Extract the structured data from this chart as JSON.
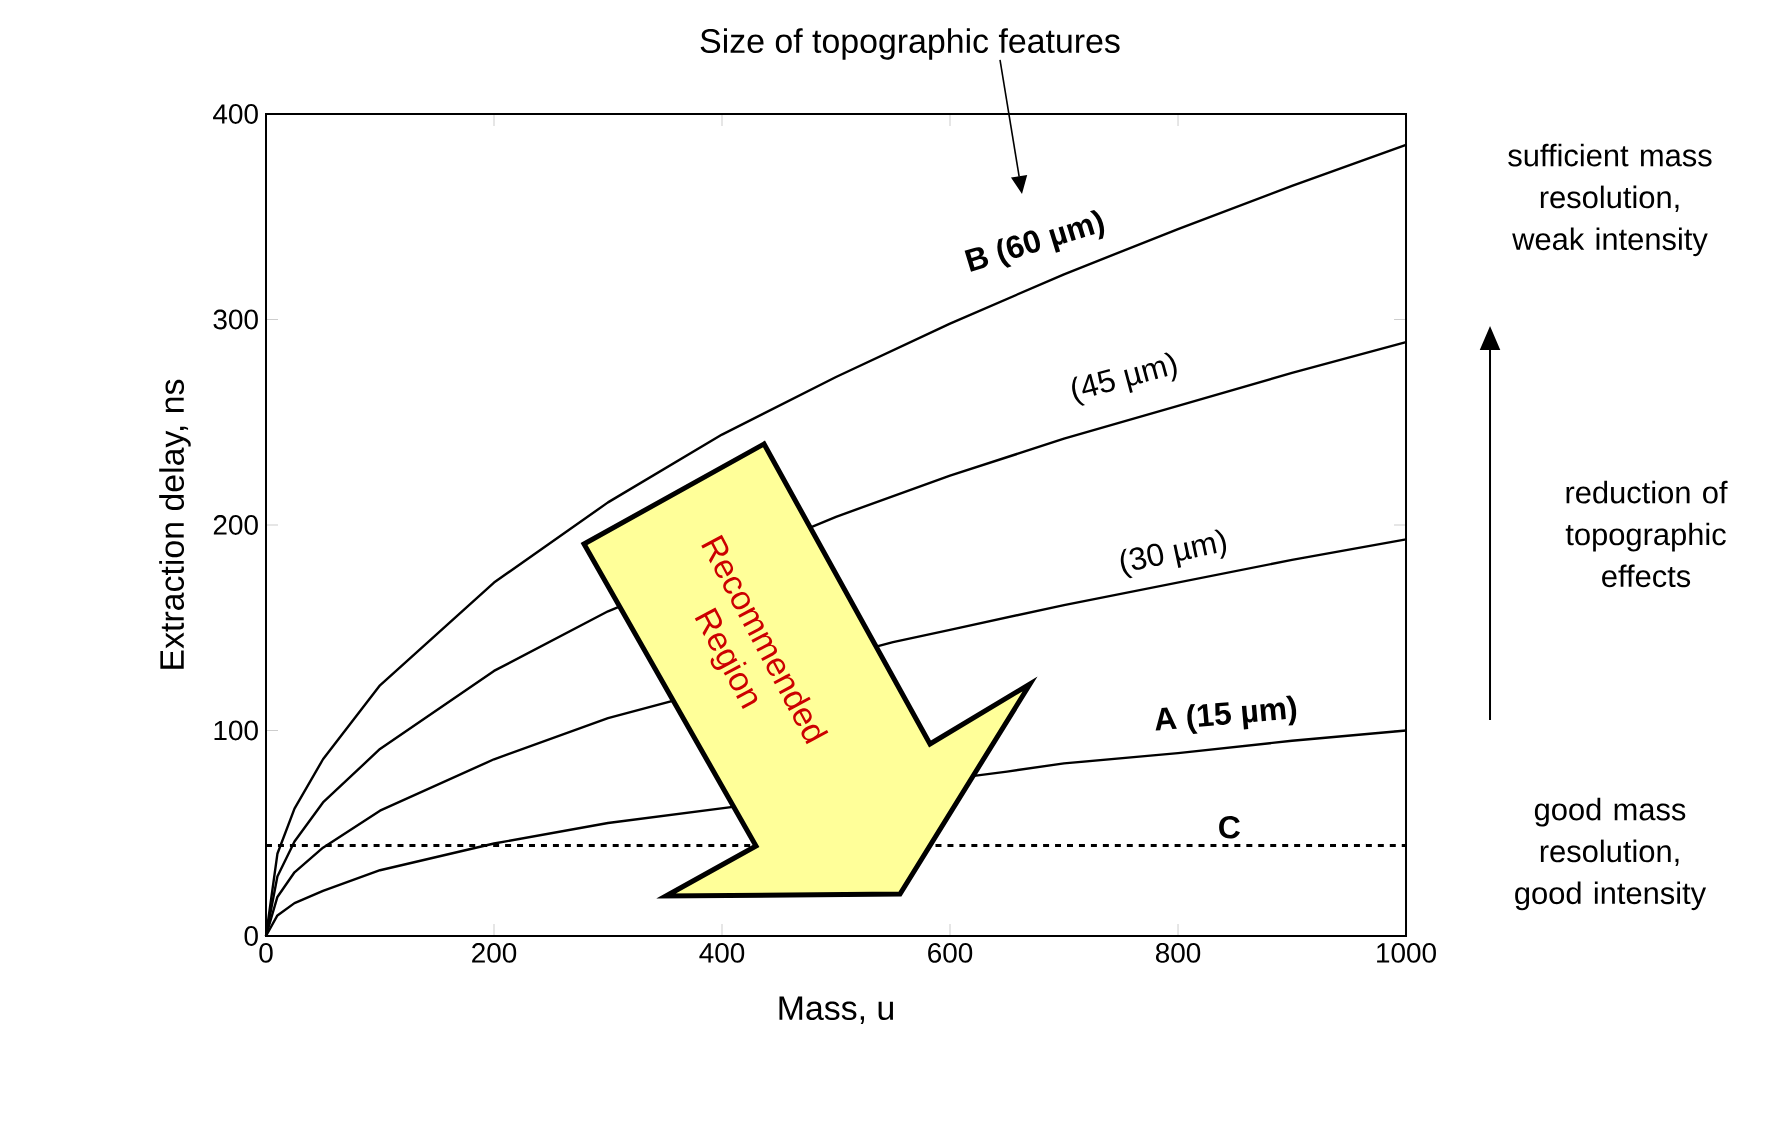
{
  "chart_data": {
    "type": "line",
    "xlabel": "Mass, u",
    "ylabel": "Extraction delay, ns",
    "xlim": [
      0,
      1000
    ],
    "ylim": [
      0,
      400
    ],
    "xticks": [
      0,
      200,
      400,
      600,
      800,
      1000
    ],
    "yticks": [
      0,
      100,
      200,
      300,
      400
    ],
    "x": [
      0,
      10,
      25,
      50,
      100,
      200,
      300,
      400,
      500,
      600,
      700,
      800,
      900,
      1000
    ],
    "series": [
      {
        "name": "B (60 µm)",
        "color": "#000000",
        "values": [
          0,
          40,
          62,
          86,
          122,
          172,
          211,
          244,
          272,
          298,
          322,
          344,
          365,
          385
        ]
      },
      {
        "name": "(45 µm)",
        "color": "#000000",
        "x": [
          0,
          10,
          25,
          50,
          100,
          200,
          300,
          500,
          600,
          700,
          800,
          900,
          1000
        ],
        "values": [
          0,
          29,
          46,
          65,
          91,
          129,
          158,
          204,
          224,
          242,
          258,
          274,
          289
        ]
      },
      {
        "name": "(30 µm)",
        "color": "#000000",
        "x": [
          0,
          10,
          25,
          50,
          100,
          200,
          300,
          550,
          600,
          700,
          800,
          900,
          1000
        ],
        "values": [
          0,
          19,
          31,
          43,
          61,
          86,
          106,
          143,
          149,
          161,
          172,
          183,
          193
        ]
      },
      {
        "name": "A (15 µm)",
        "color": "#000000",
        "x": [
          0,
          10,
          25,
          50,
          100,
          200,
          300,
          650,
          700,
          800,
          900,
          1000
        ],
        "values": [
          0,
          10,
          16,
          22,
          32,
          45,
          55,
          80,
          84,
          89,
          95,
          100
        ]
      }
    ],
    "ref_lines": [
      {
        "axis": "y",
        "value": 44,
        "label": "C",
        "color": "#000000",
        "line_style": "dashed"
      }
    ],
    "annotations": [
      "Size of topographic features",
      "Recommended Region",
      "sufficient mass resolution, weak intensity",
      "reduction of topographic effects",
      "good mass resolution, good intensity"
    ],
    "grid": false,
    "marker": "none",
    "line_style": "solid"
  }
}
